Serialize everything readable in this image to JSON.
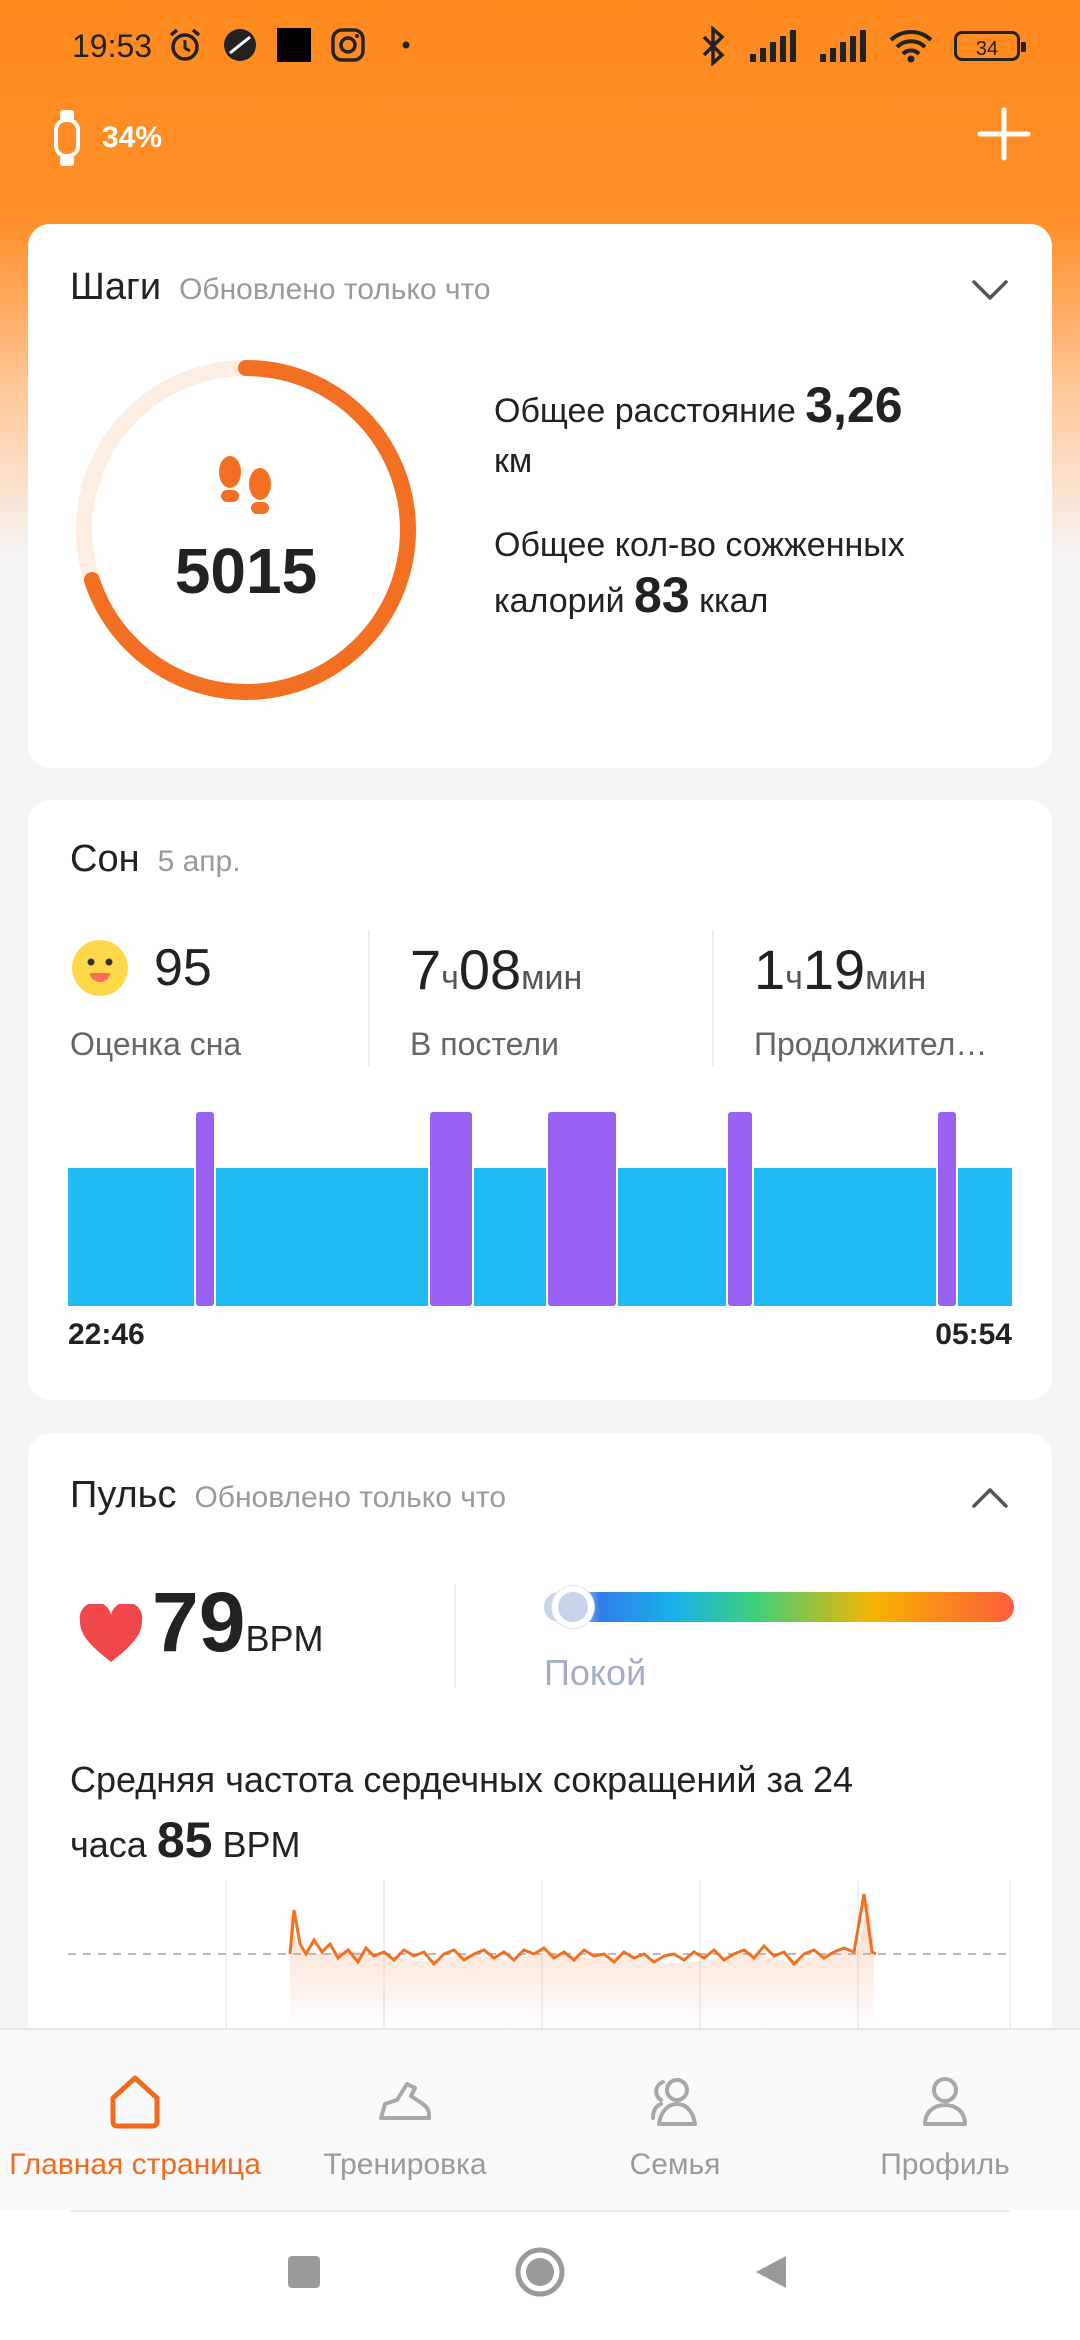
{
  "status_bar": {
    "time": "19:53",
    "battery": "34",
    "icons": [
      "alarm-icon",
      "dnd-icon",
      "square-icon",
      "instagram-icon",
      "dot-icon",
      "bluetooth-icon",
      "signal-icon",
      "signal-icon",
      "wifi-icon",
      "battery-icon"
    ]
  },
  "device": {
    "icon": "band-icon",
    "battery": "34%"
  },
  "steps": {
    "title": "Шаги",
    "updated": "Обновлено только что",
    "count": "5015",
    "progress": 0.7,
    "distance_label": "Общее расстояние",
    "distance_value": "3,26",
    "distance_unit": "км",
    "calories_label": "Общее кол-во сожженных",
    "calories_label2": "калорий",
    "calories_value": "83",
    "calories_unit": "ккал",
    "accent": "#f36f21"
  },
  "sleep": {
    "title": "Сон",
    "date": "5 апр.",
    "score_value": "95",
    "score_label": "Оценка сна",
    "in_bed_h": "7",
    "in_bed_h_unit": "ч",
    "in_bed_m": "08",
    "in_bed_m_unit": "мин",
    "in_bed_label": "В постели",
    "duration_h": "1",
    "duration_h_unit": "ч",
    "duration_m": "19",
    "duration_m_unit": "мин",
    "duration_label": "Продолжител…",
    "start_time": "22:46",
    "end_time": "05:54",
    "light_color": "#1fbaf2",
    "rem_color": "#9a61f5"
  },
  "pulse": {
    "title": "Пульс",
    "updated": "Обновлено только что",
    "value": "79",
    "unit": "BPM",
    "zone_label": "Покой",
    "avg_text": "Средняя частота сердечных сокращений за 24",
    "avg_text2": "часа",
    "avg_value": "85",
    "avg_unit": "BPM",
    "accent": "#f36f21"
  },
  "nav": {
    "items": [
      {
        "label": "Главная страница",
        "icon": "home-icon",
        "active": true
      },
      {
        "label": "Тренировка",
        "icon": "shoe-icon",
        "active": false
      },
      {
        "label": "Семья",
        "icon": "family-icon",
        "active": false
      },
      {
        "label": "Профиль",
        "icon": "profile-icon",
        "active": false
      }
    ]
  }
}
